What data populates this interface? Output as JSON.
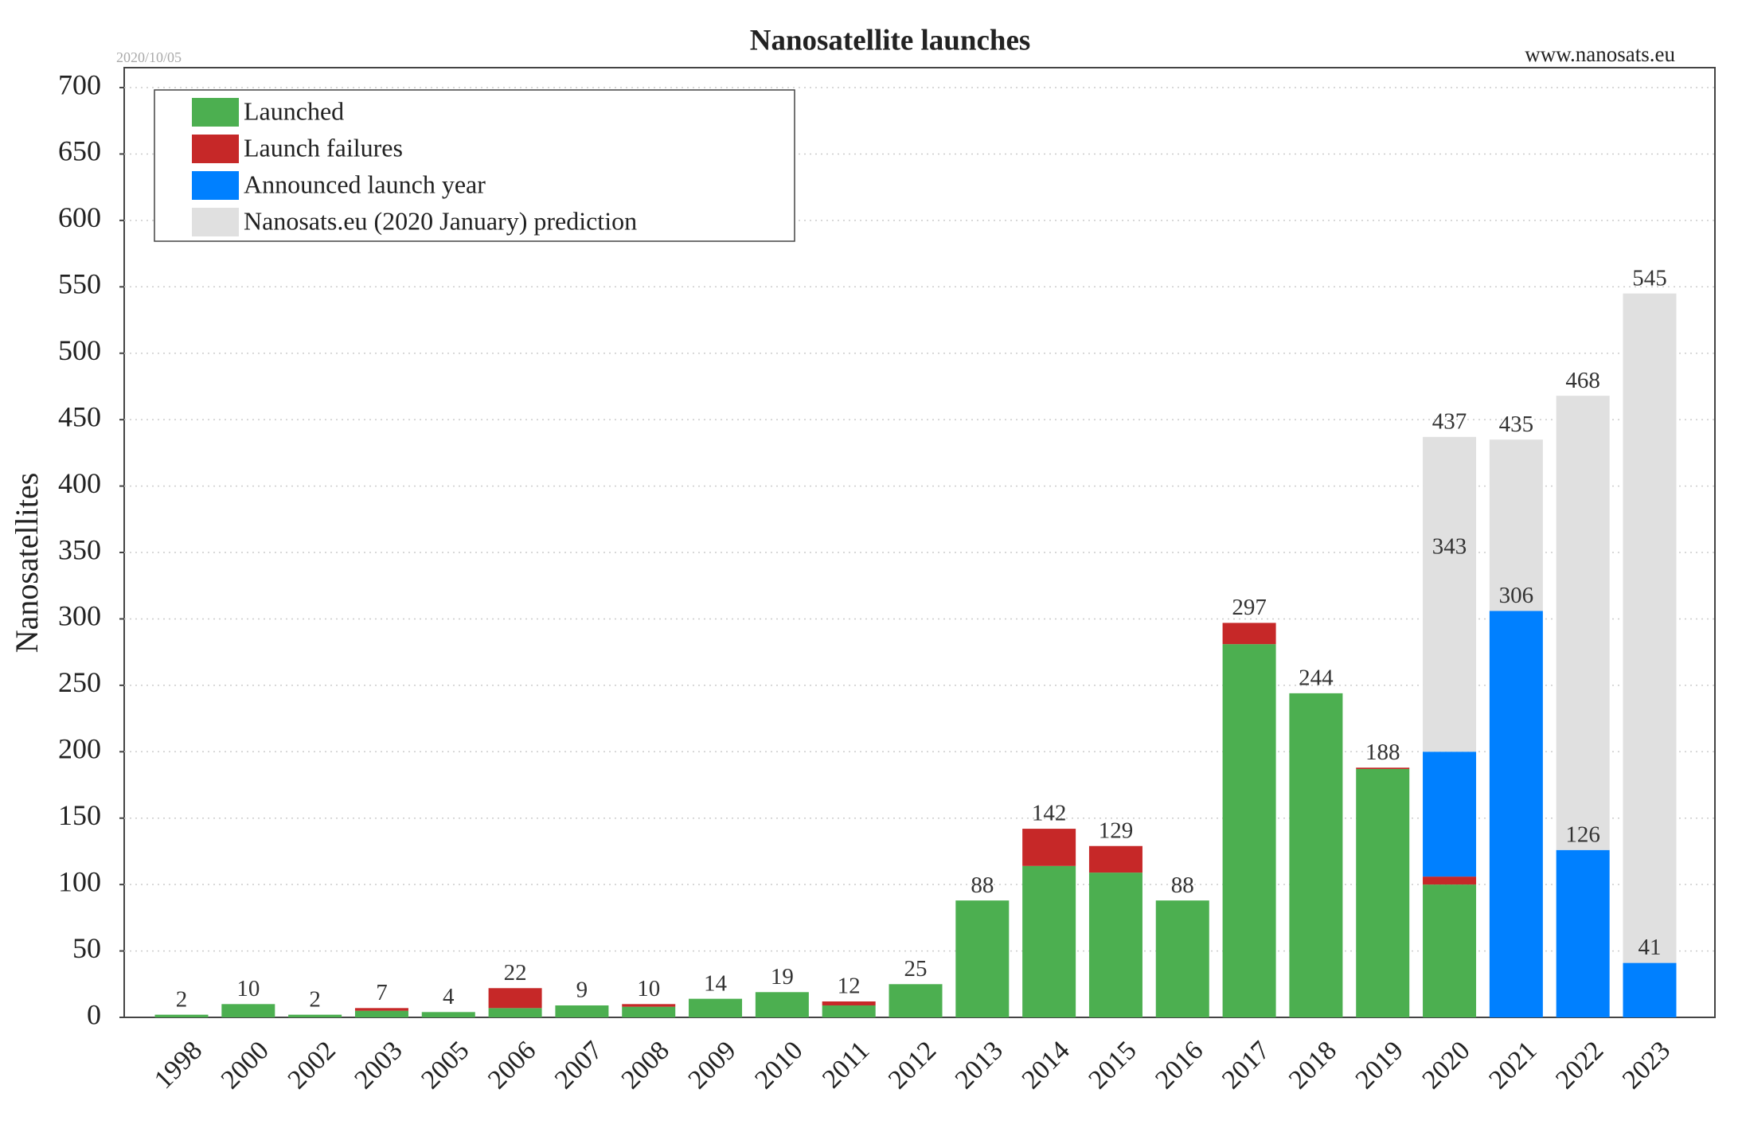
{
  "chart_data": {
    "type": "stacked_bar",
    "title": "Nanosatellite launches",
    "date": "2020/10/05",
    "source": "www.nanosats.eu",
    "y_label": "Nanosatellites",
    "categories": [
      "1998",
      "2000",
      "2002",
      "2003",
      "2005",
      "2006",
      "2007",
      "2008",
      "2009",
      "2010",
      "2011",
      "2012",
      "2013",
      "2014",
      "2015",
      "2016",
      "2017",
      "2018",
      "2019",
      "2020",
      "2021",
      "2022",
      "2023"
    ],
    "series": [
      {
        "name": "Launched",
        "color": "#4caf50",
        "values": [
          2,
          10,
          2,
          5,
          4,
          7,
          9,
          8,
          14,
          19,
          9,
          25,
          88,
          114,
          109,
          88,
          281,
          244,
          187,
          100,
          null,
          null,
          null
        ]
      },
      {
        "name": "Launch failures",
        "color": "#c62828",
        "values": [
          null,
          null,
          null,
          2,
          null,
          15,
          null,
          2,
          null,
          null,
          3,
          null,
          null,
          28,
          20,
          null,
          16,
          null,
          1,
          6,
          null,
          null,
          null
        ]
      },
      {
        "name": "Announced launch year",
        "color": "#0080ff",
        "values": [
          null,
          null,
          null,
          null,
          null,
          null,
          null,
          null,
          null,
          null,
          null,
          null,
          null,
          null,
          null,
          null,
          null,
          null,
          null,
          94,
          306,
          126,
          41
        ]
      },
      {
        "name": "Nanosats.eu (2020 January) prediction",
        "color": "#e0e0e0",
        "values": [
          null,
          null,
          null,
          null,
          null,
          null,
          null,
          null,
          null,
          null,
          null,
          null,
          null,
          null,
          null,
          null,
          null,
          null,
          null,
          237,
          129,
          342,
          504
        ]
      }
    ],
    "totals": [
      2,
      10,
      2,
      7,
      4,
      22,
      9,
      10,
      14,
      19,
      12,
      25,
      88,
      142,
      129,
      88,
      297,
      244,
      188,
      437,
      435,
      468,
      545
    ],
    "inner_labels": [
      null,
      null,
      null,
      null,
      null,
      null,
      null,
      null,
      null,
      null,
      null,
      null,
      null,
      null,
      null,
      null,
      null,
      null,
      null,
      343,
      306,
      126,
      41
    ],
    "ylim": [
      0,
      715
    ],
    "yticks": [
      0,
      50,
      100,
      150,
      200,
      250,
      300,
      350,
      400,
      450,
      500,
      550,
      600,
      650,
      700
    ],
    "grid": true,
    "legend": "upper left"
  }
}
